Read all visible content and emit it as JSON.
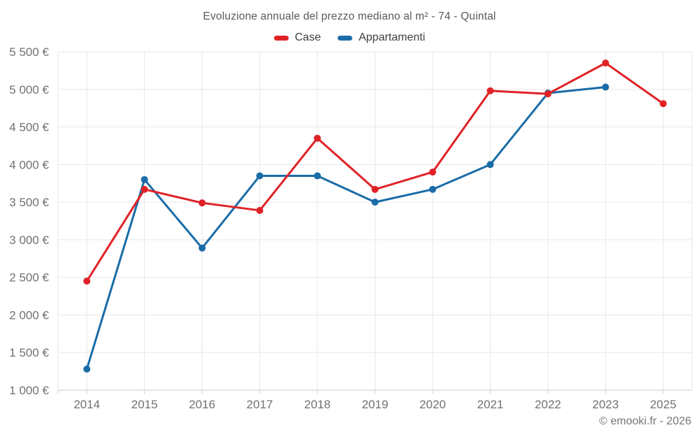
{
  "chart_data": {
    "type": "line",
    "title": "Evoluzione annuale del prezzo mediano al m² - 74 - Quintal",
    "categories": [
      "2014",
      "2015",
      "2016",
      "2017",
      "2018",
      "2019",
      "2020",
      "2021",
      "2022",
      "2023",
      "2025"
    ],
    "series": [
      {
        "name": "Case",
        "color": "#e02227",
        "values": [
          2450,
          3670,
          3490,
          3390,
          4350,
          3670,
          3900,
          4980,
          4940,
          5350,
          4810
        ]
      },
      {
        "name": "Appartamenti",
        "color": "#1a6ca8",
        "values": [
          1280,
          3800,
          2890,
          3850,
          3850,
          3500,
          3670,
          4000,
          4950,
          5030,
          null
        ]
      }
    ],
    "ylim": [
      1000,
      5500
    ],
    "y_ticks": [
      {
        "value": 1000,
        "label": "1 000 €"
      },
      {
        "value": 1500,
        "label": "1 500 €"
      },
      {
        "value": 2000,
        "label": "2 000 €"
      },
      {
        "value": 2500,
        "label": "2 500 €"
      },
      {
        "value": 3000,
        "label": "3 000 €"
      },
      {
        "value": 3500,
        "label": "3 500 €"
      },
      {
        "value": 4000,
        "label": "4 000 €"
      },
      {
        "value": 4500,
        "label": "4 500 €"
      },
      {
        "value": 5000,
        "label": "5 000 €"
      },
      {
        "value": 5500,
        "label": "5 500 €"
      }
    ],
    "grid": true,
    "legend_position": "top",
    "note": "no data point for Appartamenti in 2025; year 2024 absent from axis"
  },
  "footer": {
    "copyright": "© emooki.fr - 2026"
  },
  "colors": {
    "grid": "#e7e7e7",
    "axis": "#cccccc",
    "tick_label": "#717171",
    "title_text": "#595959",
    "legend_text": "#3f3f3f",
    "footer_text": "#757575",
    "background": "#ffffff"
  }
}
